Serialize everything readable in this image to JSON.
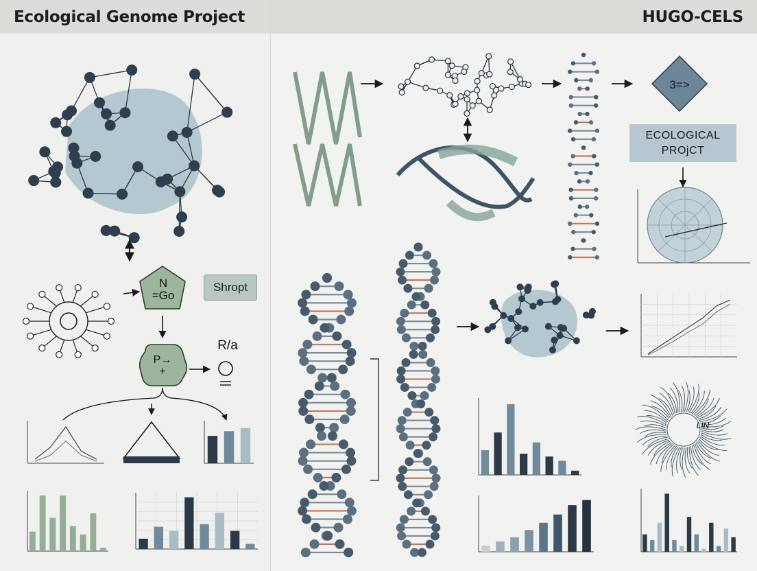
{
  "header": {
    "left_title": "Ecological Genome Project",
    "right_title": "HUGO-CELS"
  },
  "flow": {
    "pentagon_label": "N\n=Go",
    "hexagon_label": "P→\n+",
    "shropt_label": "Shropt",
    "ra_label": "R/a",
    "diamond_label": "3=>",
    "eco_box_line1": "ECOLOGICAL",
    "eco_box_line2": "PROjCT",
    "radial_label": "LIN"
  },
  "colors": {
    "node_dark": "#2f3e4f",
    "blob": "#a9c1c9",
    "dna_bead": "#5b6f80",
    "dna_red": "#c0785f",
    "green": "#9db59c",
    "bar_dark": "#2c3a48",
    "bar_mid": "#6f8a9c",
    "bar_light": "#a9bcc4",
    "bar_green": "#94ad97"
  },
  "chart_data": [
    {
      "type": "line",
      "series": [
        {
          "values": [
            0.1,
            0.4,
            0.9,
            0.3,
            0.1
          ]
        },
        {
          "values": [
            0.05,
            0.2,
            0.55,
            0.2,
            0.05
          ]
        }
      ]
    },
    {
      "type": "bar",
      "series": [
        {
          "values": [
            0.15
          ]
        }
      ]
    },
    {
      "type": "bar",
      "series": [
        {
          "values": [
            0.7,
            0.82,
            0.9
          ]
        }
      ]
    },
    {
      "type": "bar",
      "series": [
        {
          "values": [
            0.35,
            1.0,
            0.6,
            1.0,
            0.45,
            0.3,
            0.68,
            0.06
          ]
        }
      ]
    },
    {
      "type": "bar",
      "series": [
        {
          "values": [
            0.2,
            0.43,
            0.35,
            1.0,
            0.48,
            0.7,
            0.35,
            0.1
          ]
        }
      ]
    },
    {
      "type": "bar",
      "series": [
        {
          "values": [
            0.35,
            0.6,
            1.0,
            0.3,
            0.46,
            0.26,
            0.2,
            0.06
          ]
        }
      ]
    },
    {
      "type": "bar",
      "series": [
        {
          "values": [
            0.12,
            0.2,
            0.28,
            0.42,
            0.56,
            0.72,
            0.9,
            1.0
          ]
        }
      ]
    },
    {
      "type": "line",
      "series": [
        {
          "values": [
            0.05,
            0.2,
            0.35,
            0.5,
            0.65,
            0.85,
            0.95
          ]
        },
        {
          "values": [
            0.03,
            0.15,
            0.28,
            0.42,
            0.55,
            0.75,
            0.88
          ]
        }
      ]
    },
    {
      "type": "bar",
      "series": [
        {
          "values": [
            0.3,
            0.2,
            0.5,
            1.0,
            0.2,
            0.1,
            0.6,
            0.3,
            0.05,
            0.5,
            0.1,
            0.4,
            0.25
          ]
        }
      ]
    }
  ]
}
